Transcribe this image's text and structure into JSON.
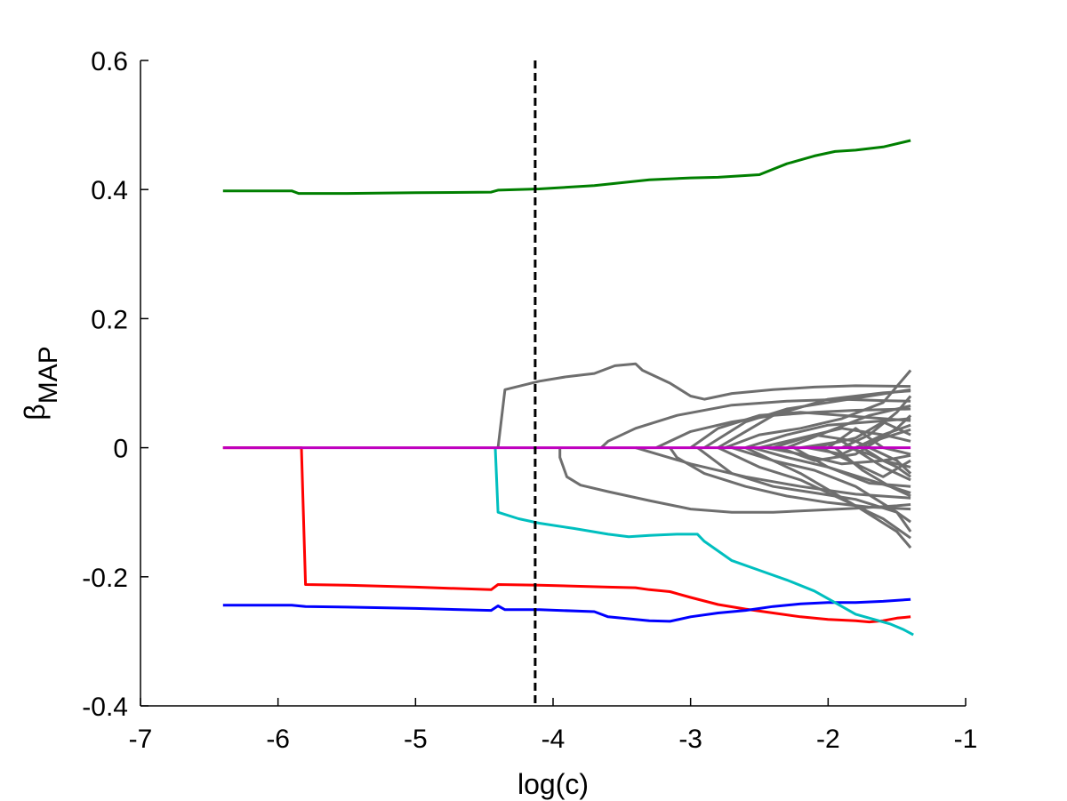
{
  "chart_data": {
    "type": "line",
    "title": "",
    "xlabel": "log(c)",
    "ylabel": "β",
    "ylabel_subscript": "MAP",
    "xlim": [
      -7,
      -1
    ],
    "ylim": [
      -0.4,
      0.6
    ],
    "xticks": [
      -7,
      -6,
      -5,
      -4,
      -3,
      -2,
      -1
    ],
    "xtick_labels": [
      "-7",
      "-6",
      "-5",
      "-4",
      "-3",
      "-2",
      "-1"
    ],
    "yticks": [
      -0.4,
      -0.2,
      0,
      0.2,
      0.4,
      0.6
    ],
    "ytick_labels": [
      "-0.4",
      "-0.2",
      "0",
      "0.2",
      "0.4",
      "0.6"
    ],
    "grid": false,
    "legend": "none",
    "vline": {
      "x": -4.13,
      "style": "dashed",
      "color": "#000000"
    },
    "series": [
      {
        "color": "#007f00",
        "x": [
          -6.4,
          -5.9,
          -5.85,
          -5.5,
          -5,
          -4.45,
          -4.4,
          -4.1,
          -3.7,
          -3.3,
          -3.0,
          -2.8,
          -2.5,
          -2.3,
          -2.1,
          -1.95,
          -1.8,
          -1.6,
          -1.4
        ],
        "y": [
          0.398,
          0.398,
          0.394,
          0.394,
          0.395,
          0.396,
          0.399,
          0.401,
          0.406,
          0.415,
          0.418,
          0.419,
          0.423,
          0.44,
          0.452,
          0.459,
          0.461,
          0.466,
          0.476
        ]
      },
      {
        "color": "#ff0000",
        "x": [
          -6.4,
          -5.83,
          -5.8,
          -5.5,
          -5,
          -4.45,
          -4.4,
          -4.1,
          -3.6,
          -3.4,
          -3.3,
          -3.15,
          -3.0,
          -2.8,
          -2.6,
          -2.4,
          -2.2,
          -2.0,
          -1.8,
          -1.7,
          -1.6,
          -1.5,
          -1.4
        ],
        "y": [
          0,
          0,
          -0.212,
          -0.213,
          -0.216,
          -0.22,
          -0.212,
          -0.213,
          -0.216,
          -0.217,
          -0.22,
          -0.223,
          -0.232,
          -0.243,
          -0.25,
          -0.256,
          -0.262,
          -0.266,
          -0.268,
          -0.27,
          -0.268,
          -0.264,
          -0.262
        ]
      },
      {
        "color": "#0000ff",
        "x": [
          -6.4,
          -5.9,
          -5.8,
          -5.5,
          -5,
          -4.45,
          -4.4,
          -4.35,
          -4.1,
          -3.7,
          -3.6,
          -3.3,
          -3.15,
          -3.0,
          -2.8,
          -2.6,
          -2.4,
          -2.2,
          -2.0,
          -1.8,
          -1.6,
          -1.4
        ],
        "y": [
          -0.244,
          -0.244,
          -0.246,
          -0.247,
          -0.249,
          -0.252,
          -0.245,
          -0.251,
          -0.251,
          -0.254,
          -0.262,
          -0.268,
          -0.269,
          -0.262,
          -0.256,
          -0.252,
          -0.246,
          -0.242,
          -0.24,
          -0.24,
          -0.238,
          -0.235
        ]
      },
      {
        "color": "#00bfbf",
        "x": [
          -4.42,
          -4.4,
          -4.25,
          -4.1,
          -3.85,
          -3.6,
          -3.45,
          -3.3,
          -3.1,
          -2.95,
          -2.9,
          -2.7,
          -2.5,
          -2.3,
          -2.1,
          -1.95,
          -1.8,
          -1.65,
          -1.55,
          -1.45,
          -1.38
        ],
        "y": [
          0,
          -0.1,
          -0.11,
          -0.117,
          -0.125,
          -0.134,
          -0.138,
          -0.136,
          -0.134,
          -0.134,
          -0.145,
          -0.175,
          -0.19,
          -0.205,
          -0.222,
          -0.24,
          -0.258,
          -0.267,
          -0.273,
          -0.282,
          -0.29
        ]
      },
      {
        "color": "#bf00bf",
        "x": [
          -6.4,
          -1.4
        ],
        "y": [
          0,
          0
        ]
      }
    ],
    "gray_series": [
      {
        "color": "#6e6e6e",
        "x": [
          -4.4,
          -4.35,
          -4.1,
          -3.9,
          -3.7,
          -3.55,
          -3.4,
          -3.35,
          -3.15,
          -3.0,
          -2.9,
          -2.7,
          -2.4,
          -2.1,
          -1.8,
          -1.4
        ],
        "y": [
          0,
          0.09,
          0.103,
          0.11,
          0.115,
          0.127,
          0.13,
          0.12,
          0.1,
          0.08,
          0.075,
          0.084,
          0.09,
          0.094,
          0.096,
          0.095
        ]
      },
      {
        "color": "#6e6e6e",
        "x": [
          -3.95,
          -3.95,
          -3.9,
          -3.8,
          -3.6,
          -3.3,
          -3.0,
          -2.7,
          -2.4,
          -2.1,
          -1.8,
          -1.5,
          -1.4
        ],
        "y": [
          0,
          -0.015,
          -0.045,
          -0.058,
          -0.068,
          -0.082,
          -0.095,
          -0.1,
          -0.1,
          -0.097,
          -0.094,
          -0.09,
          -0.088
        ]
      },
      {
        "color": "#6e6e6e",
        "x": [
          -3.65,
          -3.6,
          -3.4,
          -3.1,
          -2.7,
          -2.3,
          -1.9,
          -1.6,
          -1.4
        ],
        "y": [
          0,
          0.01,
          0.03,
          0.05,
          0.066,
          0.072,
          0.075,
          0.073,
          0.072
        ]
      },
      {
        "color": "#6e6e6e",
        "x": [
          -3.15,
          -3.1,
          -2.9,
          -2.6,
          -2.3,
          -2.0,
          -1.7,
          -1.4
        ],
        "y": [
          0,
          -0.015,
          -0.04,
          -0.06,
          -0.075,
          -0.085,
          -0.092,
          -0.095
        ]
      },
      {
        "color": "#6e6e6e",
        "x": [
          -3.4,
          -3.0,
          -2.6,
          -2.2,
          -1.8,
          -1.4
        ],
        "y": [
          0,
          -0.025,
          -0.045,
          -0.06,
          -0.072,
          -0.078
        ]
      },
      {
        "color": "#6e6e6e",
        "x": [
          -3.25,
          -3.0,
          -2.7,
          -2.4,
          -2.1,
          -1.8,
          -1.4
        ],
        "y": [
          0,
          0.025,
          0.04,
          0.05,
          0.055,
          0.058,
          0.06
        ]
      },
      {
        "color": "#6e6e6e",
        "x": [
          -3.0,
          -2.8,
          -2.5,
          -2.2,
          -1.9,
          -1.6,
          -1.4
        ],
        "y": [
          0,
          0.03,
          0.05,
          0.055,
          0.05,
          0.045,
          0.042
        ]
      },
      {
        "color": "#6e6e6e",
        "x": [
          -2.95,
          -2.7,
          -2.4,
          -2.1,
          -1.8,
          -1.5,
          -1.4
        ],
        "y": [
          0,
          -0.04,
          -0.06,
          -0.07,
          -0.08,
          -0.1,
          -0.115
        ]
      },
      {
        "color": "#6e6e6e",
        "x": [
          -2.9,
          -2.6,
          -2.3,
          -2.0,
          -1.7,
          -1.4
        ],
        "y": [
          0,
          0.04,
          0.06,
          0.07,
          0.08,
          0.09
        ]
      },
      {
        "color": "#6e6e6e",
        "x": [
          -2.8,
          -2.5,
          -2.2,
          -1.9,
          -1.6,
          -1.4
        ],
        "y": [
          0,
          -0.03,
          -0.05,
          -0.08,
          -0.11,
          -0.14
        ]
      },
      {
        "color": "#6e6e6e",
        "x": [
          -2.75,
          -2.5,
          -2.2,
          -1.9,
          -1.6,
          -1.4
        ],
        "y": [
          0,
          0.02,
          0.03,
          0.045,
          0.07,
          0.12
        ]
      },
      {
        "color": "#6e6e6e",
        "x": [
          -2.7,
          -2.4,
          -2.1,
          -1.8,
          -1.5,
          -1.4
        ],
        "y": [
          0,
          -0.02,
          -0.035,
          -0.06,
          -0.1,
          -0.13
        ]
      },
      {
        "color": "#6e6e6e",
        "x": [
          -2.6,
          -2.3,
          -2.0,
          -1.7,
          -1.4
        ],
        "y": [
          0,
          0.02,
          0.035,
          0.04,
          0.045
        ]
      },
      {
        "color": "#6e6e6e",
        "x": [
          -2.55,
          -2.3,
          -2.0,
          -1.7,
          -1.4
        ],
        "y": [
          0,
          -0.015,
          -0.03,
          -0.05,
          -0.07
        ]
      },
      {
        "color": "#6e6e6e",
        "x": [
          -2.5,
          -2.2,
          -1.9,
          -1.6,
          -1.4
        ],
        "y": [
          0,
          0.015,
          0.03,
          0.02,
          0.01
        ]
      },
      {
        "color": "#6e6e6e",
        "x": [
          -2.45,
          -2.2,
          -1.9,
          -1.6,
          -1.4
        ],
        "y": [
          0,
          -0.01,
          -0.025,
          -0.02,
          -0.03
        ]
      },
      {
        "color": "#6e6e6e",
        "x": [
          -2.4,
          -2.1,
          -1.8,
          -1.5,
          -1.4
        ],
        "y": [
          0,
          0.02,
          0.01,
          -0.02,
          -0.04
        ]
      },
      {
        "color": "#6e6e6e",
        "x": [
          -2.35,
          -2.1,
          -1.8,
          -1.5,
          -1.4
        ],
        "y": [
          0,
          -0.02,
          -0.01,
          0.03,
          0.05
        ]
      },
      {
        "color": "#6e6e6e",
        "x": [
          -2.3,
          -2.0,
          -1.7,
          -1.4
        ],
        "y": [
          0,
          0.025,
          0.05,
          0.065
        ]
      },
      {
        "color": "#6e6e6e",
        "x": [
          -2.25,
          -2.0,
          -1.7,
          -1.4
        ],
        "y": [
          0,
          -0.03,
          -0.055,
          -0.06
        ]
      },
      {
        "color": "#6e6e6e",
        "x": [
          -2.2,
          -1.9,
          -1.6,
          -1.4
        ],
        "y": [
          0,
          0.01,
          -0.03,
          -0.05
        ]
      },
      {
        "color": "#6e6e6e",
        "x": [
          -2.15,
          -1.9,
          -1.6,
          -1.4
        ],
        "y": [
          0,
          -0.01,
          0.02,
          0.035
        ]
      },
      {
        "color": "#6e6e6e",
        "x": [
          -2.1,
          -1.8,
          -1.6,
          -1.4
        ],
        "y": [
          0,
          0.015,
          0.04,
          0.02
        ]
      },
      {
        "color": "#6e6e6e",
        "x": [
          -2.05,
          -1.8,
          -1.6,
          -1.4
        ],
        "y": [
          0,
          -0.025,
          -0.045,
          -0.02
        ]
      },
      {
        "color": "#6e6e6e",
        "x": [
          -2.0,
          -1.8,
          -1.6,
          -1.4
        ],
        "y": [
          0,
          0.03,
          0.0,
          -0.01
        ]
      },
      {
        "color": "#6e6e6e",
        "x": [
          -1.95,
          -1.75,
          -1.55,
          -1.4
        ],
        "y": [
          0,
          -0.035,
          -0.06,
          -0.075
        ]
      },
      {
        "color": "#6e6e6e",
        "x": [
          -1.9,
          -1.7,
          -1.5,
          -1.4
        ],
        "y": [
          0,
          0.02,
          0.055,
          0.08
        ]
      },
      {
        "color": "#6e6e6e",
        "x": [
          -1.85,
          -1.7,
          -1.5,
          -1.4
        ],
        "y": [
          0,
          -0.01,
          -0.03,
          -0.045
        ]
      },
      {
        "color": "#6e6e6e",
        "x": [
          -1.8,
          -1.6,
          -1.4
        ],
        "y": [
          0,
          0.015,
          0.028
        ]
      },
      {
        "color": "#6e6e6e",
        "x": [
          -1.75,
          -1.6,
          -1.4
        ],
        "y": [
          0,
          -0.02,
          -0.012
        ]
      },
      {
        "color": "#6e6e6e",
        "x": [
          -2.6,
          -2.2,
          -1.8,
          -1.5,
          -1.4
        ],
        "y": [
          0.0,
          -0.04,
          -0.09,
          -0.13,
          -0.155
        ]
      },
      {
        "color": "#6e6e6e",
        "x": [
          -2.8,
          -2.4,
          -2.0,
          -1.6,
          -1.4
        ],
        "y": [
          0.0,
          0.05,
          0.075,
          0.085,
          0.088
        ]
      }
    ]
  }
}
